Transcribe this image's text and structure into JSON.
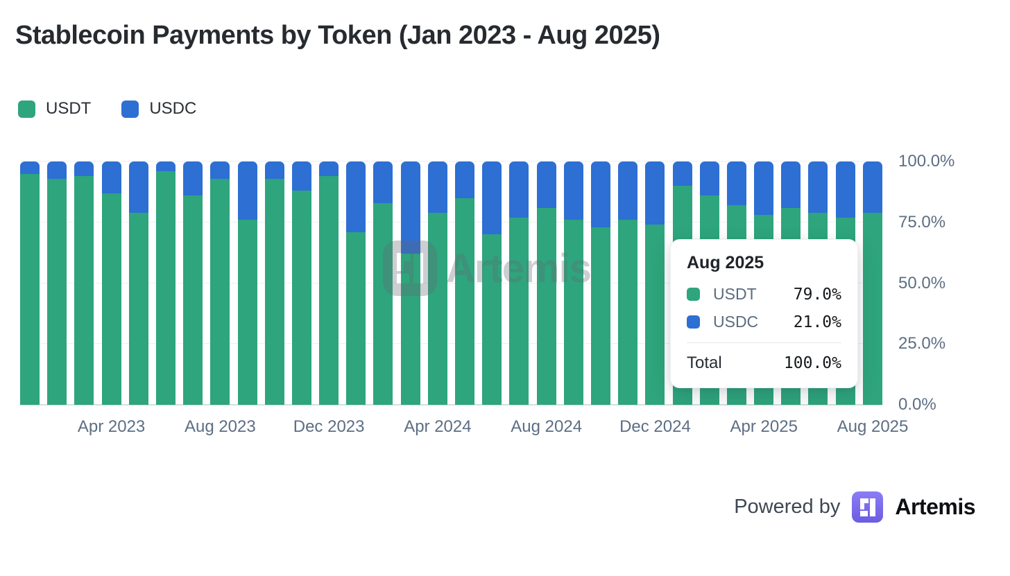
{
  "page": {
    "title": "Stablecoin Payments by Token (Jan 2023 - Aug 2025)"
  },
  "colors": {
    "usdt": "#2EA57C",
    "usdc": "#2D6FD3",
    "axis_label": "#5D6E84",
    "grid": "#EDEFF2",
    "brand_purple": "#7668EC"
  },
  "legend": [
    {
      "label": "USDT",
      "color": "#2EA57C"
    },
    {
      "label": "USDC",
      "color": "#2D6FD3"
    }
  ],
  "chart_data": {
    "type": "bar",
    "stacked": true,
    "title": "Stablecoin Payments by Token (Jan 2023 - Aug 2025)",
    "xlabel": "",
    "ylabel": "",
    "ylim": [
      0,
      100
    ],
    "grid": "horizontal",
    "legend_position": "top-left",
    "categories": [
      "Jan 2023",
      "Feb 2023",
      "Mar 2023",
      "Apr 2023",
      "May 2023",
      "Jun 2023",
      "Jul 2023",
      "Aug 2023",
      "Sep 2023",
      "Oct 2023",
      "Nov 2023",
      "Dec 2023",
      "Jan 2024",
      "Feb 2024",
      "Mar 2024",
      "Apr 2024",
      "May 2024",
      "Jun 2024",
      "Jul 2024",
      "Aug 2024",
      "Sep 2024",
      "Oct 2024",
      "Nov 2024",
      "Dec 2024",
      "Jan 2025",
      "Feb 2025",
      "Mar 2025",
      "Apr 2025",
      "May 2025",
      "Jun 2025",
      "Jul 2025",
      "Aug 2025"
    ],
    "series": [
      {
        "name": "USDT",
        "color": "#2EA57C",
        "values": [
          95,
          93,
          94,
          87,
          79,
          96,
          86,
          93,
          76,
          93,
          88,
          94,
          71,
          83,
          62,
          79,
          85,
          70,
          77,
          81,
          76,
          73,
          76,
          74,
          90,
          86,
          82,
          78,
          81,
          79,
          77,
          79
        ]
      },
      {
        "name": "USDC",
        "color": "#2D6FD3",
        "values": [
          5,
          7,
          6,
          13,
          21,
          4,
          14,
          7,
          24,
          7,
          12,
          6,
          29,
          17,
          38,
          21,
          15,
          30,
          23,
          19,
          24,
          27,
          24,
          26,
          10,
          14,
          18,
          22,
          19,
          21,
          23,
          21
        ]
      }
    ],
    "x_tick_labels": [
      "Apr 2023",
      "Aug 2023",
      "Dec 2023",
      "Apr 2024",
      "Aug 2024",
      "Dec 2024",
      "Apr 2025",
      "Aug 2025"
    ],
    "x_tick_indices": [
      3,
      7,
      11,
      15,
      19,
      23,
      27,
      31
    ],
    "y_ticks": [
      {
        "label": "100.0%",
        "value": 100
      },
      {
        "label": "75.0%",
        "value": 75
      },
      {
        "label": "50.0%",
        "value": 50
      },
      {
        "label": "25.0%",
        "value": 25
      },
      {
        "label": "0.0%",
        "value": 0
      }
    ]
  },
  "tooltip": {
    "title": "Aug 2025",
    "rows": [
      {
        "label": "USDT",
        "value": "79.0%",
        "color": "#2EA57C"
      },
      {
        "label": "USDC",
        "value": "21.0%",
        "color": "#2D6FD3"
      }
    ],
    "total_label": "Total",
    "total_value": "100.0%"
  },
  "watermark": {
    "text": "Artemis"
  },
  "footer": {
    "powered_by": "Powered by",
    "brand": "Artemis"
  }
}
